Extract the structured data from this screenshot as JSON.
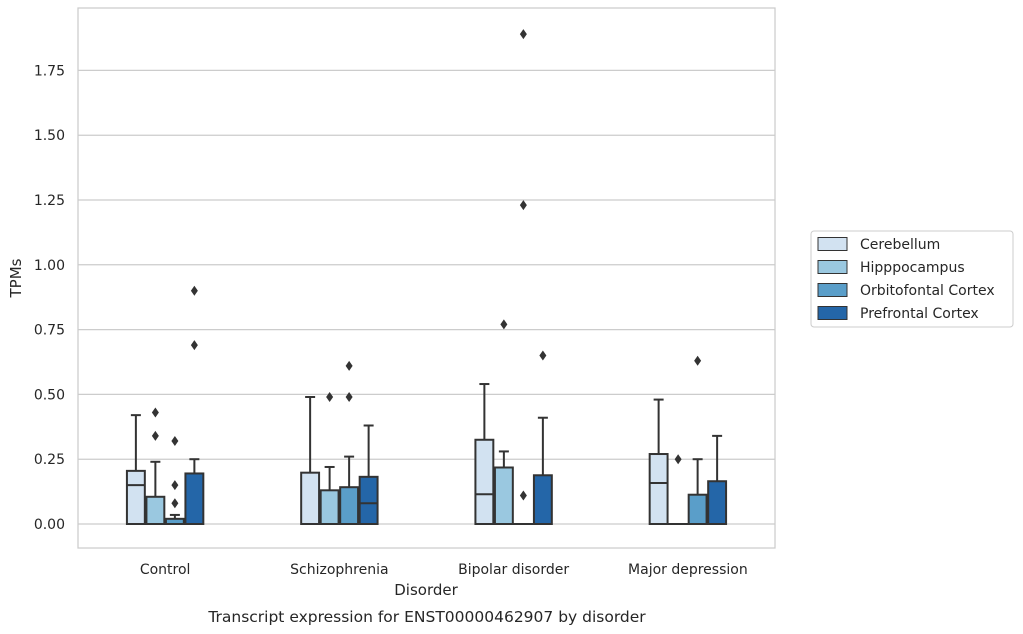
{
  "chart_data": {
    "type": "box",
    "caption": "Transcript expression for ENST00000462907 by disorder",
    "xlabel": "Disorder",
    "ylabel": "TPMs",
    "ylim": [
      -0.09,
      1.98
    ],
    "yticks": [
      "0.00",
      "0.25",
      "0.50",
      "0.75",
      "1.00",
      "1.25",
      "1.50",
      "1.75"
    ],
    "yticks_values": [
      0,
      0.25,
      0.5,
      0.75,
      1.0,
      1.25,
      1.5,
      1.75
    ],
    "grid": "horizontal",
    "legend_position": "right",
    "categories": [
      "Control",
      "Schizophrenia",
      "Bipolar disorder",
      "Major depression"
    ],
    "series": [
      {
        "name": "Cerebellum",
        "color": "#d2e2f1",
        "boxes": [
          {
            "min": 0.0,
            "q1": 0.0,
            "median": 0.15,
            "q3": 0.205,
            "max": 0.42,
            "outliers": []
          },
          {
            "min": 0.0,
            "q1": 0.0,
            "median": 0.0,
            "q3": 0.198,
            "max": 0.49,
            "outliers": []
          },
          {
            "min": 0.0,
            "q1": 0.0,
            "median": 0.115,
            "q3": 0.325,
            "max": 0.54,
            "outliers": []
          },
          {
            "min": 0.0,
            "q1": 0.0,
            "median": 0.158,
            "q3": 0.27,
            "max": 0.48,
            "outliers": []
          }
        ]
      },
      {
        "name": "Hipppocampus",
        "color": "#9ac8e0",
        "boxes": [
          {
            "min": 0.0,
            "q1": 0.0,
            "median": 0.0,
            "q3": 0.105,
            "max": 0.24,
            "outliers": [
              0.34,
              0.43
            ]
          },
          {
            "min": 0.0,
            "q1": 0.0,
            "median": 0.0,
            "q3": 0.13,
            "max": 0.22,
            "outliers": [
              0.49
            ]
          },
          {
            "min": 0.0,
            "q1": 0.0,
            "median": 0.0,
            "q3": 0.218,
            "max": 0.28,
            "outliers": [
              0.77
            ]
          },
          {
            "min": 0.0,
            "q1": 0.0,
            "median": 0.0,
            "q3": 0.0,
            "max": 0.0,
            "outliers": [
              0.25
            ]
          }
        ]
      },
      {
        "name": "Orbitofontal Cortex",
        "color": "#5a9ec9",
        "boxes": [
          {
            "min": 0.0,
            "q1": 0.0,
            "median": 0.0,
            "q3": 0.02,
            "max": 0.035,
            "outliers": [
              0.08,
              0.15,
              0.32
            ]
          },
          {
            "min": 0.0,
            "q1": 0.0,
            "median": 0.0,
            "q3": 0.142,
            "max": 0.26,
            "outliers": [
              0.49,
              0.61
            ]
          },
          {
            "min": 0.0,
            "q1": 0.0,
            "median": 0.0,
            "q3": 0.0,
            "max": 0.0,
            "outliers": [
              0.11,
              1.23,
              1.89
            ]
          },
          {
            "min": 0.0,
            "q1": 0.0,
            "median": 0.0,
            "q3": 0.113,
            "max": 0.25,
            "outliers": [
              0.63
            ]
          }
        ]
      },
      {
        "name": "Prefrontal Cortex",
        "color": "#2466a8",
        "boxes": [
          {
            "min": 0.0,
            "q1": 0.0,
            "median": 0.0,
            "q3": 0.195,
            "max": 0.25,
            "outliers": [
              0.69,
              0.9
            ]
          },
          {
            "min": 0.0,
            "q1": 0.0,
            "median": 0.08,
            "q3": 0.182,
            "max": 0.38,
            "outliers": []
          },
          {
            "min": 0.0,
            "q1": 0.0,
            "median": 0.0,
            "q3": 0.188,
            "max": 0.41,
            "outliers": [
              0.65
            ]
          },
          {
            "min": 0.0,
            "q1": 0.0,
            "median": 0.0,
            "q3": 0.165,
            "max": 0.34,
            "outliers": []
          }
        ]
      }
    ]
  }
}
